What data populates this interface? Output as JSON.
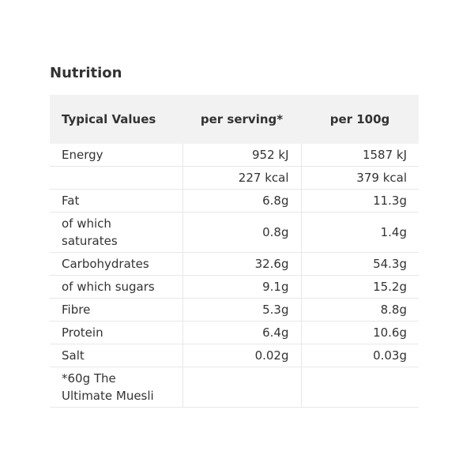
{
  "title": "Nutrition",
  "table": {
    "header": [
      "Typical Values",
      "per serving*",
      "per 100g"
    ],
    "rows": [
      [
        "Energy",
        "952 kJ",
        "1587 kJ"
      ],
      [
        null,
        "227 kcal",
        "379 kcal"
      ],
      [
        "Fat",
        "6.8g",
        "11.3g"
      ],
      [
        "of which saturates",
        "0.8g",
        "1.4g"
      ],
      [
        "Carbohydrates",
        "32.6g",
        "54.3g"
      ],
      [
        "of which sugars",
        "9.1g",
        "15.2g"
      ],
      [
        "Fibre",
        "5.3g",
        "8.8g"
      ],
      [
        "Protein",
        "6.4g",
        "10.6g"
      ],
      [
        "Salt",
        "0.02g",
        "0.03g"
      ],
      [
        "*60g The Ultimate Muesli",
        null,
        null
      ]
    ]
  }
}
